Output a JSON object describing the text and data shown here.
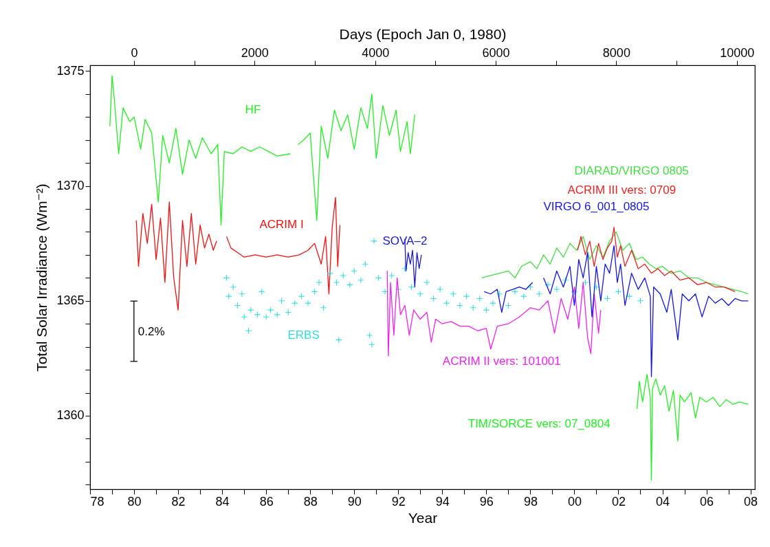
{
  "chart_data": {
    "type": "line",
    "xlabel": "Year",
    "ylabel": "Total Solar Irradiance (Wm⁻²)",
    "x2label": "Days (Epoch Jan 0, 1980)",
    "xlim": [
      1978,
      2008.2
    ],
    "xticks": [
      {
        "value": 1978,
        "label": "78"
      },
      {
        "value": 1979,
        "label": null
      },
      {
        "value": 1980,
        "label": "80"
      },
      {
        "value": 1981,
        "label": null
      },
      {
        "value": 1982,
        "label": "82"
      },
      {
        "value": 1983,
        "label": null
      },
      {
        "value": 1984,
        "label": "84"
      },
      {
        "value": 1985,
        "label": null
      },
      {
        "value": 1986,
        "label": "86"
      },
      {
        "value": 1987,
        "label": null
      },
      {
        "value": 1988,
        "label": "88"
      },
      {
        "value": 1989,
        "label": null
      },
      {
        "value": 1990,
        "label": "90"
      },
      {
        "value": 1991,
        "label": null
      },
      {
        "value": 1992,
        "label": "92"
      },
      {
        "value": 1993,
        "label": null
      },
      {
        "value": 1994,
        "label": "94"
      },
      {
        "value": 1995,
        "label": null
      },
      {
        "value": 1996,
        "label": "96"
      },
      {
        "value": 1997,
        "label": null
      },
      {
        "value": 1998,
        "label": "98"
      },
      {
        "value": 1999,
        "label": null
      },
      {
        "value": 2000,
        "label": "00"
      },
      {
        "value": 2001,
        "label": null
      },
      {
        "value": 2002,
        "label": "02"
      },
      {
        "value": 2003,
        "label": null
      },
      {
        "value": 2004,
        "label": "04"
      },
      {
        "value": 2005,
        "label": null
      },
      {
        "value": 2006,
        "label": "06"
      },
      {
        "value": 2007,
        "label": null
      },
      {
        "value": 2008,
        "label": "08"
      }
    ],
    "x2lim": [
      -730,
      10300
    ],
    "x2ticks": [
      0,
      {
        "value": 1000,
        "label": null
      },
      2000,
      {
        "value": 3000,
        "label": null
      },
      4000,
      {
        "value": 5000,
        "label": null
      },
      6000,
      {
        "value": 7000,
        "label": null
      },
      8000,
      {
        "value": 9000,
        "label": null
      },
      10000
    ],
    "ylim": [
      1356.8,
      1375.25
    ],
    "yticks": [
      {
        "value": 1357,
        "label": null
      },
      {
        "value": 1358,
        "label": null
      },
      {
        "value": 1359,
        "label": null
      },
      1360,
      {
        "value": 1361,
        "label": null
      },
      {
        "value": 1362,
        "label": null
      },
      {
        "value": 1363,
        "label": null
      },
      {
        "value": 1364,
        "label": null
      },
      1365,
      {
        "value": 1366,
        "label": null
      },
      {
        "value": 1367,
        "label": null
      },
      {
        "value": 1368,
        "label": null
      },
      {
        "value": 1369,
        "label": null
      },
      1370,
      {
        "value": 1371,
        "label": null
      },
      {
        "value": 1372,
        "label": null
      },
      {
        "value": 1373,
        "label": null
      },
      {
        "value": 1374,
        "label": null
      },
      1375
    ],
    "grid": false,
    "series": [
      {
        "name": "HF",
        "color": "#22ee22",
        "x": [
          1978.9,
          1979.0,
          1979.1,
          1979.3,
          1979.5,
          1979.8,
          1980.0,
          1980.3,
          1980.5,
          1980.8,
          1981.1,
          1981.3,
          1981.6,
          1981.9,
          1982.2,
          1982.5,
          1982.8,
          1983.1,
          1983.5,
          1983.8,
          1983.95,
          1984.1,
          1984.5,
          1984.9,
          1985.3,
          1985.7,
          1986.1,
          1986.5,
          1987.1,
          1987.3,
          1987.45,
          1987.7,
          1988.0,
          1988.3,
          1988.5,
          1988.8,
          1989.1,
          1989.4,
          1989.7,
          1990.0,
          1990.3,
          1990.6,
          1990.8,
          1991.0,
          1991.3,
          1991.6,
          1991.9,
          1992.1,
          1992.4,
          1992.55,
          1992.75
        ],
        "values": [
          1372.6,
          1374.8,
          1373.8,
          1371.4,
          1373.4,
          1372.8,
          1373.0,
          1371.6,
          1372.9,
          1372.3,
          1369.3,
          1372.2,
          1371.0,
          1372.5,
          1370.5,
          1372.0,
          1371.2,
          1372.1,
          1371.4,
          1371.8,
          1368.3,
          1371.5,
          1371.4,
          1371.7,
          1371.5,
          1371.7,
          1371.5,
          1371.3,
          1371.4,
          null,
          1371.8,
          1372.0,
          1372.3,
          1368.5,
          1372.6,
          1371.2,
          1373.3,
          1372.4,
          1373.1,
          1371.6,
          1373.4,
          1372.5,
          1374.0,
          1371.2,
          1373.5,
          1372.2,
          1373.3,
          1371.5,
          1372.8,
          1371.4,
          1373.1
        ]
      },
      {
        "name": "ACRIM I",
        "color": "#ee1111",
        "x": [
          1980.1,
          1980.2,
          1980.4,
          1980.6,
          1980.8,
          1981.0,
          1981.2,
          1981.4,
          1981.6,
          1981.8,
          1982.0,
          1982.2,
          1982.4,
          1982.6,
          1982.8,
          1983.0,
          1983.2,
          1983.4,
          1983.6,
          1983.75,
          1983.9,
          1984.2,
          1984.4,
          1984.7,
          1985.0,
          1985.5,
          1986.0,
          1986.5,
          1987.0,
          1987.5,
          1987.9,
          1988.2,
          1988.5,
          1988.7,
          1988.85,
          1989.0,
          1989.15,
          1989.25,
          1989.35
        ],
        "values": [
          1368.5,
          1366.5,
          1368.8,
          1367.5,
          1369.2,
          1366.8,
          1368.6,
          1365.8,
          1369.3,
          1366.0,
          1364.6,
          1368.5,
          1366.5,
          1368.8,
          1366.6,
          1368.3,
          1367.3,
          1367.9,
          1367.2,
          1367.6,
          null,
          1367.8,
          1367.3,
          1367.1,
          1366.9,
          1367.0,
          1366.9,
          1367.0,
          1366.9,
          1367.0,
          1367.2,
          1367.5,
          1366.6,
          1367.8,
          1365.3,
          1368.2,
          1369.5,
          1366.5,
          1368.3
        ]
      },
      {
        "name": "ERBS",
        "type": "scatter",
        "marker": "cross",
        "color": "#33dddd",
        "x": [
          1984.2,
          1984.3,
          1984.5,
          1984.7,
          1984.9,
          1985.0,
          1985.2,
          1985.3,
          1985.6,
          1985.8,
          1986.0,
          1986.2,
          1986.5,
          1986.7,
          1987.0,
          1987.3,
          1987.6,
          1987.9,
          1988.2,
          1988.4,
          1988.6,
          1988.9,
          1989.2,
          1989.3,
          1989.5,
          1989.8,
          1990.0,
          1990.3,
          1990.5,
          1990.7,
          1990.8,
          1990.9,
          1991.1,
          1991.4,
          1991.7,
          1992.0,
          1992.3,
          1992.6,
          1993.0,
          1993.3,
          1993.6,
          1993.9,
          1994.2,
          1994.5,
          1994.8,
          1995.1,
          1995.4,
          1995.7,
          1996.0,
          1996.3,
          1996.6,
          1997.0,
          1997.3,
          1997.7,
          1998.0,
          1998.4,
          1998.8,
          1999.2,
          1999.6,
          2000.0,
          2000.5,
          2001.0,
          2001.5,
          2002.0,
          2002.5,
          2003.0
        ],
        "values": [
          1366.0,
          1365.2,
          1365.6,
          1364.8,
          1365.3,
          1364.3,
          1363.7,
          1364.6,
          1364.4,
          1365.4,
          1364.3,
          1364.6,
          1364.4,
          1365.0,
          1364.5,
          1364.9,
          1365.2,
          1364.9,
          1365.4,
          1365.8,
          1364.7,
          1366.2,
          1365.8,
          1363.3,
          1366.1,
          1365.7,
          1366.3,
          1365.9,
          1366.6,
          1363.5,
          1363.1,
          1367.6,
          1366.0,
          1365.4,
          1366.1,
          1365.5,
          1366.4,
          1365.6,
          1365.3,
          1365.8,
          1365.1,
          1365.5,
          1364.9,
          1365.3,
          1364.8,
          1365.2,
          1364.7,
          1365.1,
          1364.6,
          1364.9,
          1365.3,
          1364.8,
          1365.4,
          1365.2,
          1365.6,
          1365.3,
          1365.7,
          1365.5,
          1365.9,
          1365.4,
          1365.8,
          1365.6,
          1365.1,
          1365.4,
          1365.2,
          1365.0
        ]
      },
      {
        "name": "SOVA–2",
        "color": "#1a1acc",
        "x": [
          1992.3,
          1992.35,
          1992.45,
          1992.55,
          1992.65,
          1992.75,
          1992.85,
          1992.95,
          1993.05
        ],
        "values": [
          1367.7,
          1366.3,
          1367.1,
          1366.6,
          1367.2,
          1365.6,
          1367.1,
          1366.4,
          1367.0
        ]
      },
      {
        "name": "ACRIM II vers: 101001",
        "color": "#ee22ee",
        "x": [
          1991.5,
          1991.55,
          1991.65,
          1991.8,
          1991.95,
          1992.1,
          1992.3,
          1992.5,
          1992.7,
          1993.0,
          1993.3,
          1993.5,
          1993.7,
          1994.0,
          1994.4,
          1994.8,
          1995.2,
          1995.6,
          1996.0,
          1996.2,
          1996.5,
          1997.0,
          1997.5,
          1998.0,
          1998.4,
          1998.8,
          1999.1,
          1999.4,
          1999.7,
          2000.0,
          2000.2,
          2000.4,
          2000.6,
          2000.75,
          2000.9,
          2001.1,
          2001.2
        ],
        "values": [
          1366.3,
          1362.6,
          1365.8,
          1363.5,
          1366.0,
          1364.4,
          1364.8,
          1363.5,
          1364.6,
          1364.2,
          1364.5,
          1363.2,
          1364.2,
          1364.0,
          1364.1,
          1363.9,
          1363.9,
          1363.7,
          1363.8,
          1362.9,
          1363.9,
          1364.0,
          1364.3,
          1364.7,
          1364.6,
          1365.0,
          1363.6,
          1365.1,
          1364.2,
          1365.6,
          1363.8,
          1365.8,
          1363.4,
          1362.7,
          1365.3,
          1363.6,
          1364.6
        ]
      },
      {
        "name": "DIARAD/VIRGO 0805",
        "color": "#44dd44",
        "x": [
          1995.8,
          1996.2,
          1996.6,
          1997.0,
          1997.3,
          1997.6,
          1998.0,
          1998.3,
          1998.6,
          1998.9,
          1999.2,
          1999.5,
          1999.8,
          2000.1,
          2000.4,
          2000.7,
          2001.0,
          2001.3,
          2001.6,
          2001.9,
          2002.2,
          2002.5,
          2002.8,
          2003.1,
          2003.4,
          2003.7,
          2004.0,
          2004.4,
          2004.8,
          2005.2,
          2005.6,
          2006.0,
          2006.4,
          2006.8,
          2007.2,
          2007.6,
          2007.9
        ],
        "values": [
          1366.0,
          1366.1,
          1366.2,
          1366.3,
          1366.0,
          1366.5,
          1366.7,
          1366.4,
          1367.0,
          1366.6,
          1367.3,
          1366.9,
          1367.5,
          1367.2,
          1367.8,
          1366.8,
          1367.4,
          1366.9,
          1367.6,
          1368.0,
          1367.2,
          1367.5,
          1366.8,
          1366.9,
          1366.6,
          1366.4,
          1366.5,
          1366.2,
          1366.3,
          1366.0,
          1366.0,
          1365.8,
          1365.7,
          1365.6,
          1365.5,
          1365.4,
          1365.3
        ]
      },
      {
        "name": "ACRIM III vers: 0709",
        "color": "#e82222",
        "x": [
          2000.15,
          2000.3,
          2000.5,
          2000.7,
          2000.9,
          2001.1,
          2001.3,
          2001.5,
          2001.7,
          2001.8,
          2001.95,
          2002.1,
          2002.3,
          2002.6,
          2002.9,
          2003.2,
          2003.5,
          2003.8,
          2004.1,
          2004.4,
          2004.8,
          2005.2,
          2005.6,
          2006.0,
          2006.4,
          2006.8,
          2007.3
        ],
        "values": [
          1367.2,
          1367.8,
          1367.0,
          1367.6,
          1366.5,
          1367.5,
          1366.8,
          1367.3,
          1367.6,
          1368.2,
          1366.9,
          1367.4,
          1366.5,
          1367.2,
          1366.4,
          1366.6,
          1366.2,
          1366.4,
          1366.1,
          1366.3,
          1365.9,
          1366.0,
          1365.7,
          1365.8,
          1365.6,
          1365.6,
          1365.4
        ]
      },
      {
        "name": "VIRGO 6_001_0805",
        "color": "#1515dd",
        "x": [
          1995.9,
          1996.2,
          1996.5,
          1996.7,
          1996.9,
          1997.2,
          1997.5,
          1997.8,
          1998.1,
          1998.35,
          1998.6,
          1998.9,
          1999.2,
          1999.5,
          1999.8,
          2000.0,
          2000.2,
          2000.4,
          2000.6,
          2000.8,
          2001.0,
          2001.2,
          2001.4,
          2001.6,
          2001.8,
          2001.95,
          2002.1,
          2002.3,
          2002.6,
          2002.9,
          2003.2,
          2003.45,
          2003.5,
          2003.6,
          2003.9,
          2004.2,
          2004.4,
          2004.7,
          2004.9,
          2005.2,
          2005.5,
          2005.8,
          2006.1,
          2006.4,
          2006.7,
          2007.0,
          2007.3,
          2007.6,
          2007.9
        ],
        "values": [
          1365.4,
          1365.3,
          1365.5,
          1364.5,
          1365.4,
          1365.5,
          1365.6,
          1365.5,
          1365.8,
          null,
          1366.0,
          1365.3,
          1366.3,
          1365.6,
          1366.5,
          1364.8,
          1366.8,
          1366.0,
          1367.1,
          1364.3,
          1366.5,
          1365.0,
          1366.6,
          1366.2,
          1367.4,
          1365.8,
          1366.6,
          1364.8,
          1366.2,
          1365.5,
          1366.0,
          1365.2,
          1361.7,
          1365.6,
          1365.3,
          1364.5,
          1365.5,
          1363.3,
          1365.3,
          1365.0,
          1365.3,
          1364.3,
          1365.2,
          1364.9,
          1365.1,
          1364.8,
          1365.1,
          1365.0,
          1365.0
        ]
      },
      {
        "name": "TIM/SORCE vers: 07_0804",
        "color": "#22ee22",
        "x": [
          2002.85,
          2002.95,
          2003.1,
          2003.3,
          2003.45,
          2003.5,
          2003.55,
          2003.7,
          2003.9,
          2004.1,
          2004.3,
          2004.5,
          2004.7,
          2004.8,
          2005.0,
          2005.3,
          2005.5,
          2005.7,
          2006.0,
          2006.3,
          2006.6,
          2006.9,
          2007.2,
          2007.5,
          2007.9
        ],
        "values": [
          1360.3,
          1361.5,
          1360.6,
          1361.8,
          1360.8,
          1357.2,
          1361.2,
          1361.6,
          1360.9,
          1361.3,
          1360.2,
          1361.1,
          1358.9,
          1360.9,
          1360.6,
          1361.0,
          1359.9,
          1360.8,
          1360.6,
          1360.8,
          1360.4,
          1360.7,
          1360.5,
          1360.6,
          1360.5
        ]
      }
    ],
    "annotations": [
      "0.2%"
    ]
  }
}
